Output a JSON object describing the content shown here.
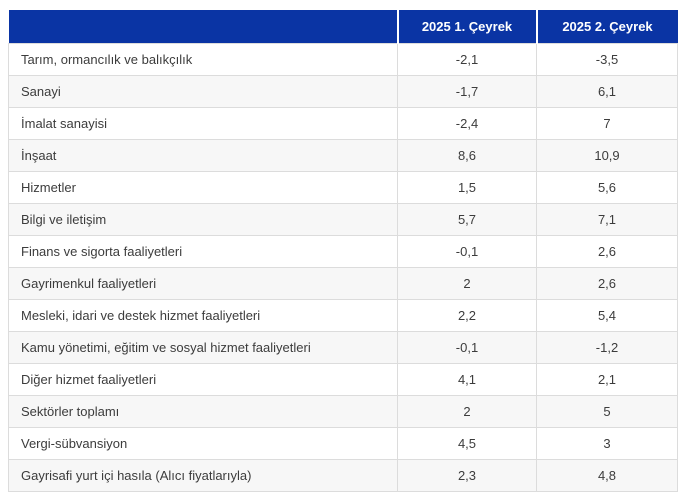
{
  "table": {
    "columns": [
      {
        "label": ""
      },
      {
        "label": "2025 1. Çeyrek"
      },
      {
        "label": "2025 2. Çeyrek"
      }
    ],
    "rows": [
      {
        "label": "Tarım, ormancılık ve balıkçılık",
        "q1": "-2,1",
        "q2": "-3,5"
      },
      {
        "label": "Sanayi",
        "q1": "-1,7",
        "q2": "6,1"
      },
      {
        "label": "İmalat sanayisi",
        "q1": "-2,4",
        "q2": "7"
      },
      {
        "label": "İnşaat",
        "q1": "8,6",
        "q2": "10,9"
      },
      {
        "label": "Hizmetler",
        "q1": "1,5",
        "q2": "5,6"
      },
      {
        "label": "Bilgi ve iletişim",
        "q1": "5,7",
        "q2": "7,1"
      },
      {
        "label": "Finans ve sigorta faaliyetleri",
        "q1": "-0,1",
        "q2": "2,6"
      },
      {
        "label": "Gayrimenkul faaliyetleri",
        "q1": "2",
        "q2": "2,6"
      },
      {
        "label": "Mesleki, idari ve destek hizmet faaliyetleri",
        "q1": "2,2",
        "q2": "5,4"
      },
      {
        "label": "Kamu yönetimi, eğitim ve sosyal hizmet faaliyetleri",
        "q1": "-0,1",
        "q2": "-1,2"
      },
      {
        "label": "Diğer hizmet faaliyetleri",
        "q1": "4,1",
        "q2": "2,1"
      },
      {
        "label": "Sektörler toplamı",
        "q1": "2",
        "q2": "5"
      },
      {
        "label": "Vergi-sübvansiyon",
        "q1": "4,5",
        "q2": "3"
      },
      {
        "label": "Gayrisafi yurt içi hasıla (Alıcı fiyatlarıyla)",
        "q1": "2,3",
        "q2": "4,8"
      }
    ]
  },
  "colors": {
    "header_bg": "#0a34a4",
    "header_text": "#ffffff",
    "stripe_bg": "#f7f7f7",
    "border": "#dcdcdc",
    "text": "#3c3c3c",
    "page_bg": "#ffffff"
  },
  "chart_data": {
    "type": "table",
    "title": "",
    "categories": [
      "Tarım, ormancılık ve balıkçılık",
      "Sanayi",
      "İmalat sanayisi",
      "İnşaat",
      "Hizmetler",
      "Bilgi ve iletişim",
      "Finans ve sigorta faaliyetleri",
      "Gayrimenkul faaliyetleri",
      "Mesleki, idari ve destek hizmet faaliyetleri",
      "Kamu yönetimi, eğitim ve sosyal hizmet faaliyetleri",
      "Diğer hizmet faaliyetleri",
      "Sektörler toplamı",
      "Vergi-sübvansiyon",
      "Gayrisafi yurt içi hasıla (Alıcı fiyatlarıyla)"
    ],
    "series": [
      {
        "name": "2025 1. Çeyrek",
        "values": [
          -2.1,
          -1.7,
          -2.4,
          8.6,
          1.5,
          5.7,
          -0.1,
          2,
          2.2,
          -0.1,
          4.1,
          2,
          4.5,
          2.3
        ]
      },
      {
        "name": "2025 2. Çeyrek",
        "values": [
          -3.5,
          6.1,
          7,
          10.9,
          5.6,
          7.1,
          2.6,
          2.6,
          5.4,
          -1.2,
          2.1,
          5,
          3,
          4.8
        ]
      }
    ],
    "layout": {
      "header_position": "top",
      "grid": true,
      "stripes": "even-rows"
    }
  }
}
